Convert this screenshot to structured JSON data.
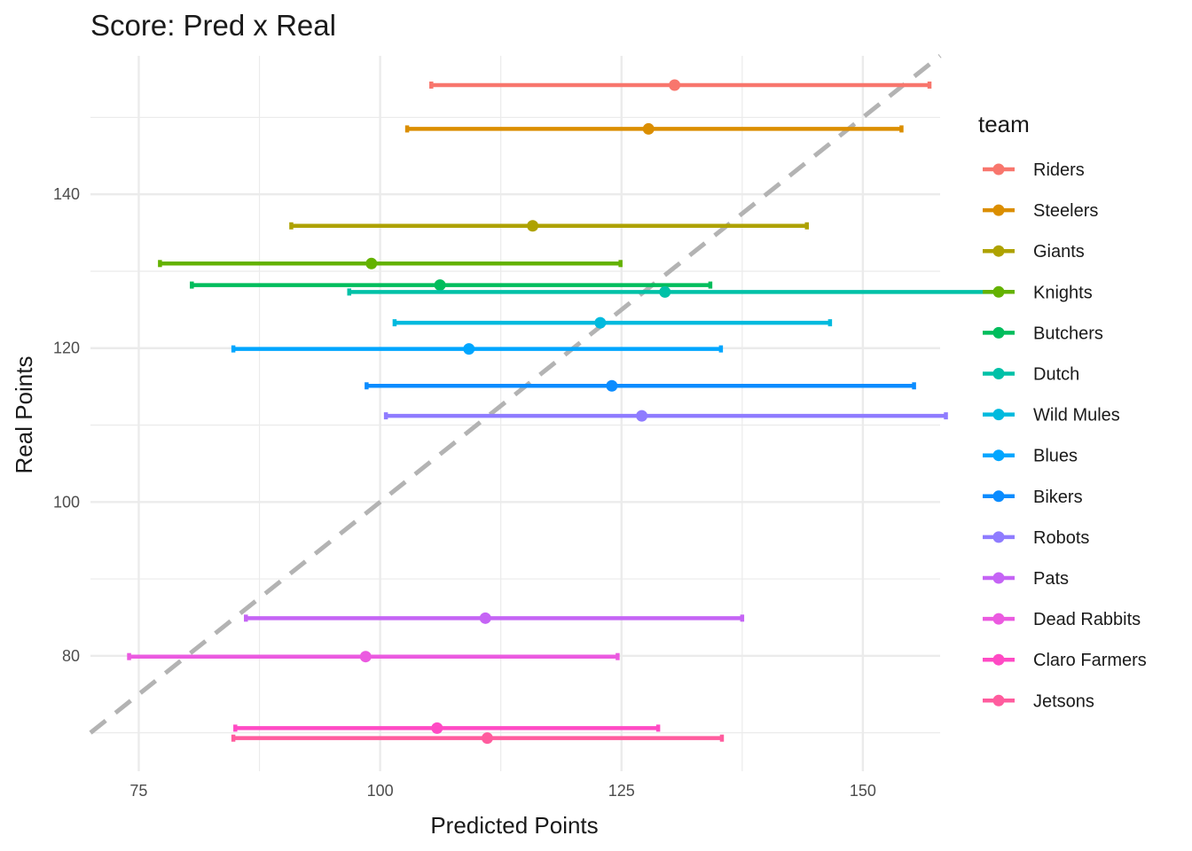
{
  "chart_data": {
    "type": "scatter",
    "title": "Score: Pred x Real",
    "xlabel": "Predicted Points",
    "ylabel": "Real Points",
    "xlim": [
      70,
      158
    ],
    "ylim": [
      65,
      158
    ],
    "x_ticks": [
      75,
      100,
      125,
      150
    ],
    "y_ticks": [
      80,
      100,
      120,
      140
    ],
    "grid": true,
    "reference_line": {
      "type": "y=x",
      "style": "dashed",
      "color": "#b3b3b3"
    },
    "legend": {
      "title": "team",
      "placement": "right"
    },
    "series": [
      {
        "name": "Riders",
        "color": "#F8766D",
        "x": 130.5,
        "y": 154.2,
        "xmin": 105.3,
        "xmax": 156.9
      },
      {
        "name": "Steelers",
        "color": "#DB8E00",
        "x": 127.8,
        "y": 148.5,
        "xmin": 102.8,
        "xmax": 154.0
      },
      {
        "name": "Giants",
        "color": "#AEA200",
        "x": 115.8,
        "y": 135.9,
        "xmin": 90.8,
        "xmax": 144.2
      },
      {
        "name": "Knights",
        "color": "#64B200",
        "x": 99.1,
        "y": 131.0,
        "xmin": 77.2,
        "xmax": 124.9
      },
      {
        "name": "Butchers",
        "color": "#00BD5C",
        "x": 106.2,
        "y": 128.2,
        "xmin": 80.5,
        "xmax": 134.2
      },
      {
        "name": "Dutch",
        "color": "#00C1A7",
        "x": 129.5,
        "y": 127.3,
        "xmin": 96.8,
        "xmax": 164.2
      },
      {
        "name": "Wild Mules",
        "color": "#00BADE",
        "x": 122.8,
        "y": 123.3,
        "xmin": 101.5,
        "xmax": 146.6
      },
      {
        "name": "Blues",
        "color": "#00A6FF",
        "x": 109.2,
        "y": 119.9,
        "xmin": 84.8,
        "xmax": 135.3
      },
      {
        "name": "Bikers",
        "color": "#B385FF",
        "x": 124.0,
        "y": 115.1,
        "xmin": 98.6,
        "xmax": 155.3
      },
      {
        "name": "Robots",
        "color": "#EF67EB",
        "x": 127.1,
        "y": 111.2,
        "xmin": 100.6,
        "xmax": 158.6
      },
      {
        "name": "Pats",
        "color": "#FF63B6",
        "x": 110.9,
        "y": 84.9,
        "xmin": 86.1,
        "xmax": 137.5
      },
      {
        "name": "Dead Rabbits",
        "color": "#F8766D",
        "x": 98.5,
        "y": 79.9,
        "xmin": 74.0,
        "xmax": 124.6
      },
      {
        "name": "Claro Farmers",
        "color": "#F8766D",
        "x": 105.9,
        "y": 70.6,
        "xmin": 85.0,
        "xmax": 128.8
      },
      {
        "name": "Jetsons",
        "color": "#F8766D",
        "x": 111.1,
        "y": 69.3,
        "xmin": 84.8,
        "xmax": 135.4
      }
    ]
  }
}
